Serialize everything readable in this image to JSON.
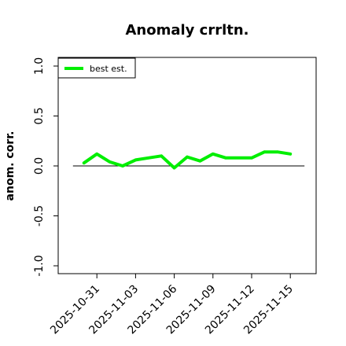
{
  "chart_data": {
    "type": "line",
    "title": "Anomaly crrltn.",
    "xlabel": "",
    "ylabel": "anom. corr.",
    "ylim": [
      -1.0,
      1.0
    ],
    "xlim": [
      "2025-10-28",
      "2025-11-17"
    ],
    "yticks": [
      "-1.0",
      "-0.5",
      "0.0",
      "0.5",
      "1.0"
    ],
    "xticks": [
      "2025-10-31",
      "2025-11-03",
      "2025-11-06",
      "2025-11-09",
      "2025-11-12",
      "2025-11-15"
    ],
    "reference_line": 0.0,
    "legend": {
      "placement": "top-left",
      "entries": [
        "best est."
      ]
    },
    "colors": {
      "series": "#00ee00",
      "reference": "#000000"
    },
    "series": [
      {
        "name": "best est.",
        "x": [
          "2025-10-30",
          "2025-10-31",
          "2025-11-01",
          "2025-11-02",
          "2025-11-03",
          "2025-11-04",
          "2025-11-05",
          "2025-11-06",
          "2025-11-07",
          "2025-11-08",
          "2025-11-09",
          "2025-11-10",
          "2025-11-12",
          "2025-11-13",
          "2025-11-14",
          "2025-11-15"
        ],
        "values": [
          0.03,
          0.12,
          0.04,
          0.0,
          0.06,
          0.08,
          0.1,
          -0.02,
          0.09,
          0.05,
          0.12,
          0.08,
          0.08,
          0.14,
          0.14,
          0.12
        ]
      }
    ]
  }
}
